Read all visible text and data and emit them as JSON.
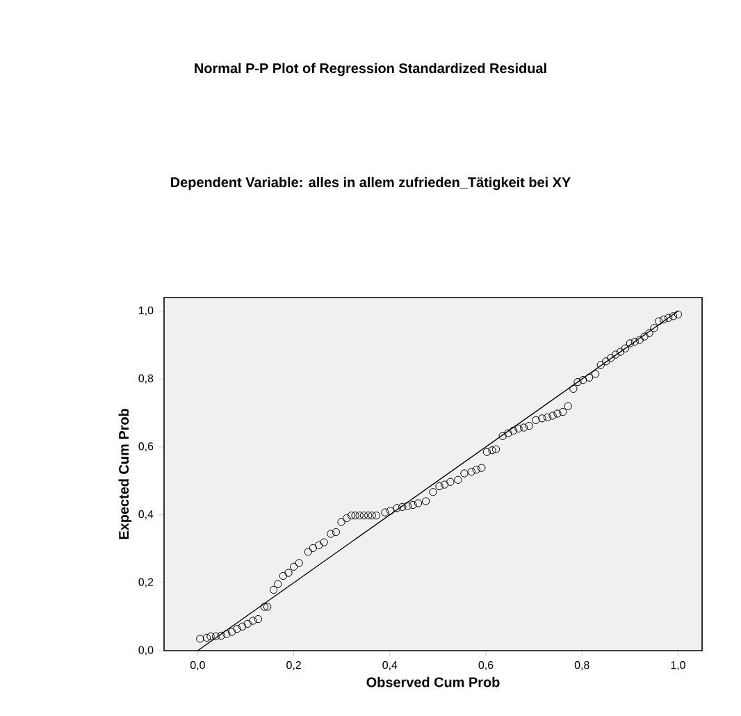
{
  "chart_data": {
    "type": "scatter",
    "title": "Normal P-P Plot of Regression Standardized Residual",
    "subtitle": "Dependent Variable: alles in allem zufrieden_Tätigkeit bei XY",
    "xlabel": "Observed Cum Prob",
    "ylabel": "Expected Cum Prob",
    "xlim": [
      -0.07,
      1.05
    ],
    "ylim": [
      0,
      1.04
    ],
    "xticks": [
      {
        "value": 0,
        "label": "0,0"
      },
      {
        "value": 0.2,
        "label": "0,2"
      },
      {
        "value": 0.4,
        "label": "0,4"
      },
      {
        "value": 0.6,
        "label": "0,6"
      },
      {
        "value": 0.8,
        "label": "0,8"
      },
      {
        "value": 1,
        "label": "1,0"
      }
    ],
    "yticks": [
      {
        "value": 0,
        "label": "0,0"
      },
      {
        "value": 0.2,
        "label": "0,2"
      },
      {
        "value": 0.4,
        "label": "0,4"
      },
      {
        "value": 0.6,
        "label": "0,6"
      },
      {
        "value": 0.8,
        "label": "0,8"
      },
      {
        "value": 1,
        "label": "1,0"
      }
    ],
    "grid": false,
    "series": [
      {
        "marker": "circle",
        "color": "#000000",
        "x": [
          0.005,
          0.019,
          0.027,
          0.038,
          0.049,
          0.06,
          0.071,
          0.082,
          0.093,
          0.104,
          0.115,
          0.126,
          0.139,
          0.145,
          0.158,
          0.167,
          0.178,
          0.189,
          0.2,
          0.211,
          0.23,
          0.24,
          0.252,
          0.263,
          0.277,
          0.288,
          0.299,
          0.31,
          0.32,
          0.328,
          0.337,
          0.346,
          0.355,
          0.363,
          0.372,
          0.39,
          0.401,
          0.415,
          0.426,
          0.437,
          0.448,
          0.459,
          0.475,
          0.49,
          0.503,
          0.514,
          0.526,
          0.542,
          0.555,
          0.57,
          0.58,
          0.591,
          0.602,
          0.613,
          0.621,
          0.635,
          0.646,
          0.657,
          0.668,
          0.679,
          0.69,
          0.704,
          0.717,
          0.728,
          0.739,
          0.749,
          0.76,
          0.771,
          0.782,
          0.791,
          0.802,
          0.815,
          0.828,
          0.839,
          0.85,
          0.86,
          0.87,
          0.88,
          0.89,
          0.9,
          0.91,
          0.92,
          0.93,
          0.94,
          0.95,
          0.96,
          0.97,
          0.98,
          0.99,
          1.0
        ],
        "values": [
          0.035,
          0.038,
          0.042,
          0.042,
          0.044,
          0.049,
          0.055,
          0.064,
          0.071,
          0.079,
          0.088,
          0.093,
          0.129,
          0.129,
          0.179,
          0.196,
          0.22,
          0.229,
          0.247,
          0.258,
          0.291,
          0.302,
          0.31,
          0.319,
          0.344,
          0.349,
          0.379,
          0.39,
          0.398,
          0.398,
          0.398,
          0.398,
          0.398,
          0.398,
          0.398,
          0.407,
          0.412,
          0.42,
          0.423,
          0.426,
          0.429,
          0.434,
          0.44,
          0.467,
          0.484,
          0.489,
          0.497,
          0.503,
          0.522,
          0.527,
          0.533,
          0.538,
          0.585,
          0.59,
          0.593,
          0.632,
          0.64,
          0.648,
          0.654,
          0.657,
          0.662,
          0.679,
          0.684,
          0.687,
          0.692,
          0.698,
          0.703,
          0.72,
          0.771,
          0.791,
          0.797,
          0.804,
          0.815,
          0.841,
          0.852,
          0.862,
          0.872,
          0.88,
          0.89,
          0.905,
          0.91,
          0.915,
          0.925,
          0.935,
          0.95,
          0.97,
          0.975,
          0.98,
          0.985,
          0.99
        ]
      },
      {
        "type": "line",
        "marker": "none",
        "color": "#000000",
        "x": [
          0,
          1
        ],
        "values": [
          0,
          1
        ]
      }
    ]
  }
}
